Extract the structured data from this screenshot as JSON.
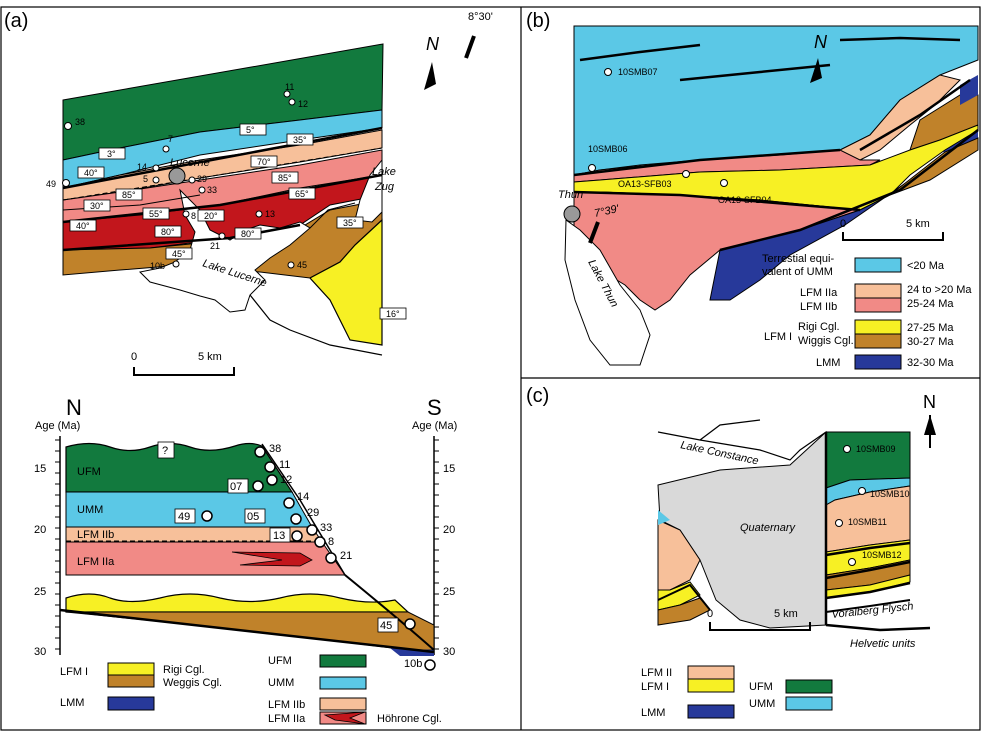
{
  "panels": {
    "a": {
      "label": "(a)",
      "north": "N",
      "longitude": "8°30'",
      "places": {
        "lucerne": "Lucerne",
        "lake_lucerne": "Lake Lucerne",
        "lake_zug_1": "Lake",
        "lake_zug_2": "Zug"
      },
      "scale": {
        "zero": "0",
        "end": "5 km"
      },
      "samples": [
        "38",
        "11",
        "12",
        "7",
        "14",
        "5",
        "49",
        "29",
        "33",
        "8",
        "13",
        "21",
        "10b",
        "45"
      ],
      "dips": [
        "5°",
        "3°",
        "35°",
        "40°",
        "70°",
        "85°",
        "85°",
        "65°",
        "30°",
        "55°",
        "20°",
        "40°",
        "80°",
        "80°",
        "45°",
        "35°",
        "16°"
      ]
    },
    "profile": {
      "north": "N",
      "south": "S",
      "age_label_left": "Age (Ma)",
      "age_label_right": "Age (Ma)",
      "ticks": [
        "15",
        "20",
        "25",
        "30"
      ],
      "units": {
        "ufm": "UFM",
        "umm": "UMM",
        "lfm2b": "LFM IIb",
        "lfm2a": "LFM IIa"
      },
      "question": "?",
      "samples": [
        "38",
        "11",
        "12",
        "07",
        "14",
        "49",
        "05",
        "29",
        "33",
        "13",
        "8",
        "21",
        "45",
        "10b"
      ]
    },
    "b": {
      "label": "(b)",
      "north": "N",
      "longitude": "7°39'",
      "places": {
        "thun": "Thun",
        "lake_thun": "Lake Thun"
      },
      "samples": [
        "10SMB07",
        "10SMB06",
        "OA13-SFB03",
        "OA13-SFB04"
      ],
      "scale": {
        "zero": "0",
        "end": "5 km"
      },
      "legend": [
        {
          "label": "Terrestial equi-",
          "label2": "valent of UMM",
          "age": "<20 Ma",
          "color": "#5bc8e6"
        },
        {
          "label": "LFM IIa",
          "age": "24 to >20 Ma",
          "color": "#f7c09a"
        },
        {
          "label": "LFM IIb",
          "age": "25-24 Ma",
          "color": "#f18a86"
        },
        {
          "label": "Rigi Cgl.",
          "age": "27-25 Ma",
          "color": "#f7f024"
        },
        {
          "label": "Wiggis Cgl.",
          "age": "30-27 Ma",
          "color": "#c0822a"
        },
        {
          "label": "LMM",
          "age": "32-30 Ma",
          "color": "#27399a"
        }
      ],
      "lfm1": "LFM I"
    },
    "c": {
      "label": "(c)",
      "north": "N",
      "places": {
        "lake_constance": "Lake Constance",
        "quaternary": "Quaternary",
        "voralberg": "Voralberg Flysch",
        "helvetic": "Helvetic units"
      },
      "samples": [
        "10SMB09",
        "10SMB10",
        "10SMB11",
        "10SMB12"
      ],
      "scale": {
        "zero": "0",
        "end": "5 km"
      },
      "legend": {
        "lfm2": "LFM II",
        "lfm1": "LFM I",
        "lmm": "LMM",
        "ufm": "UFM",
        "umm": "UMM"
      }
    },
    "legend_a": {
      "lfm1": "LFM I",
      "rigi": "Rigi Cgl.",
      "wiggis": "Weggis Cgl.",
      "lmm": "LMM",
      "ufm": "UFM",
      "umm": "UMM",
      "lfm2b": "LFM IIb",
      "lfm2a": "LFM IIa",
      "hohrone": "Höhrone Cgl."
    }
  },
  "colors": {
    "ufm": "#127a3e",
    "umm": "#5bc8e6",
    "lfm2a": "#f7c09a",
    "lfm2b": "#f18a86",
    "darkred": "#c2161c",
    "rigi": "#f7f024",
    "weggis": "#c0822a",
    "lmm": "#27399a",
    "quaternary": "#d9d9d9"
  }
}
